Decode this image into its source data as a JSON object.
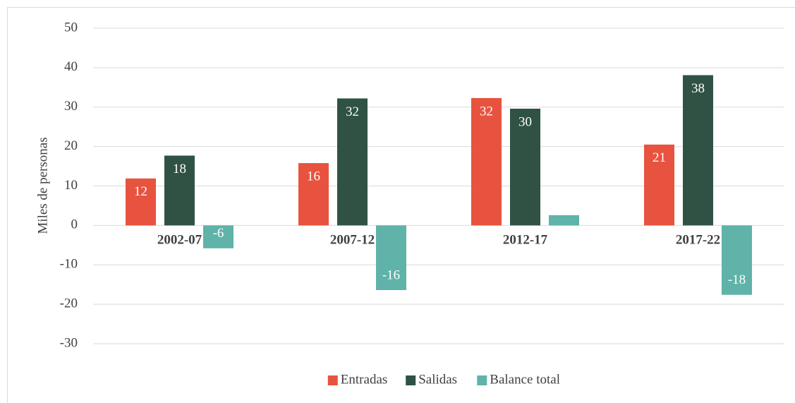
{
  "chart_data": {
    "type": "bar",
    "y_label": "Miles de personas",
    "categories": [
      "2002-07",
      "2007-12",
      "2012-17",
      "2017-22"
    ],
    "series": [
      {
        "name": "Entradas",
        "color": "#e8533f",
        "values": [
          11.9,
          15.8,
          32.3,
          20.5
        ],
        "value_labels": [
          "12",
          "16",
          "32",
          "21"
        ]
      },
      {
        "name": "Salidas",
        "color": "#2f5245",
        "values": [
          17.7,
          32.2,
          29.6,
          38.1
        ],
        "value_labels": [
          "18",
          "32",
          "30",
          "38"
        ]
      },
      {
        "name": "Balance total",
        "color": "#5fb3a8",
        "values": [
          -5.8,
          -16.4,
          2.6,
          -17.6
        ],
        "value_labels": [
          "-6",
          "-16",
          null,
          "-18"
        ]
      }
    ],
    "ylim": [
      -30,
      50
    ],
    "yticks": [
      -30,
      -20,
      -10,
      0,
      10,
      20,
      30,
      40,
      50
    ],
    "grid": true,
    "legend": "bottom"
  }
}
